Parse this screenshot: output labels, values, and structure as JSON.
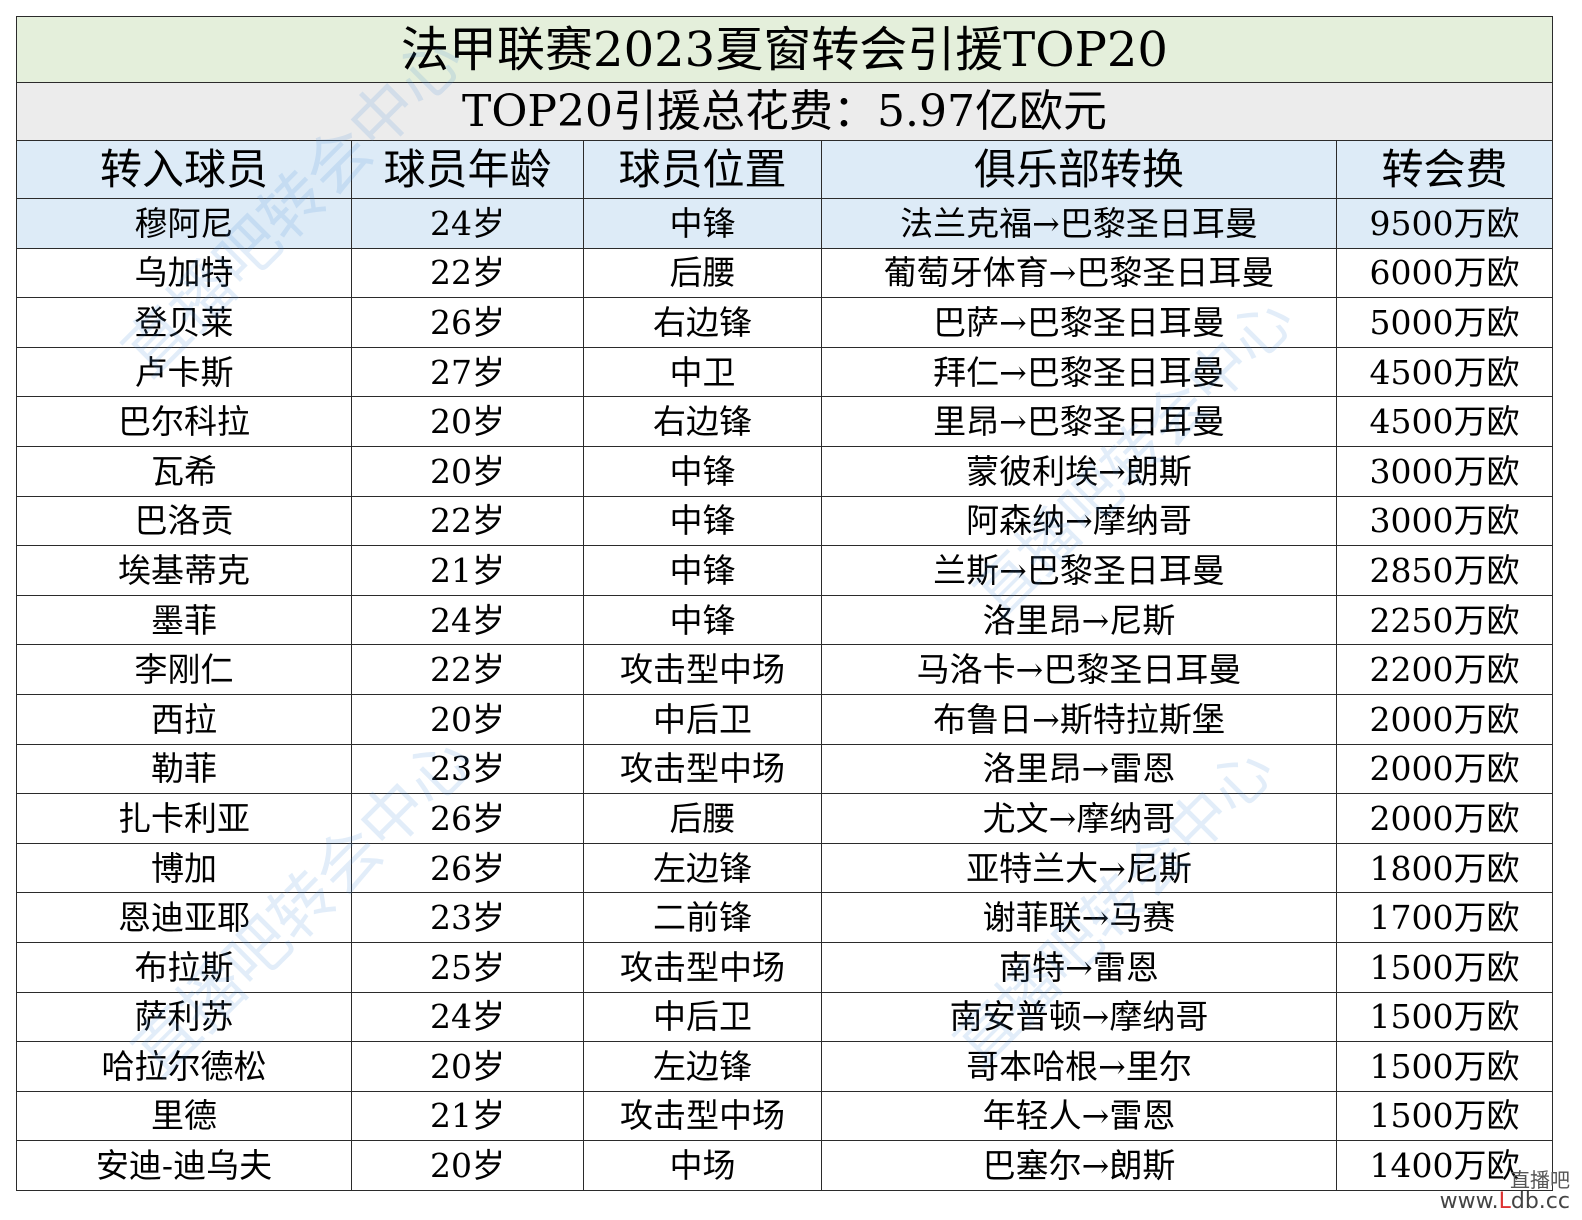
{
  "title": "法甲联赛2023夏窗转会引援TOP20",
  "subtitle": "TOP20引援总花费：5.97亿欧元",
  "columns": [
    "转入球员",
    "球员年龄",
    "球员位置",
    "俱乐部转换",
    "转会费"
  ],
  "rows": [
    {
      "player": "穆阿尼",
      "age": "24岁",
      "position": "中锋",
      "clubs": "法兰克福→巴黎圣日耳曼",
      "fee": "9500万欧"
    },
    {
      "player": "乌加特",
      "age": "22岁",
      "position": "后腰",
      "clubs": "葡萄牙体育→巴黎圣日耳曼",
      "fee": "6000万欧"
    },
    {
      "player": "登贝莱",
      "age": "26岁",
      "position": "右边锋",
      "clubs": "巴萨→巴黎圣日耳曼",
      "fee": "5000万欧"
    },
    {
      "player": "卢卡斯",
      "age": "27岁",
      "position": "中卫",
      "clubs": "拜仁→巴黎圣日耳曼",
      "fee": "4500万欧"
    },
    {
      "player": "巴尔科拉",
      "age": "20岁",
      "position": "右边锋",
      "clubs": "里昂→巴黎圣日耳曼",
      "fee": "4500万欧"
    },
    {
      "player": "瓦希",
      "age": "20岁",
      "position": "中锋",
      "clubs": "蒙彼利埃→朗斯",
      "fee": "3000万欧"
    },
    {
      "player": "巴洛贡",
      "age": "22岁",
      "position": "中锋",
      "clubs": "阿森纳→摩纳哥",
      "fee": "3000万欧"
    },
    {
      "player": "埃基蒂克",
      "age": "21岁",
      "position": "中锋",
      "clubs": "兰斯→巴黎圣日耳曼",
      "fee": "2850万欧"
    },
    {
      "player": "墨菲",
      "age": "24岁",
      "position": "中锋",
      "clubs": "洛里昂→尼斯",
      "fee": "2250万欧"
    },
    {
      "player": "李刚仁",
      "age": "22岁",
      "position": "攻击型中场",
      "clubs": "马洛卡→巴黎圣日耳曼",
      "fee": "2200万欧"
    },
    {
      "player": "西拉",
      "age": "20岁",
      "position": "中后卫",
      "clubs": "布鲁日→斯特拉斯堡",
      "fee": "2000万欧"
    },
    {
      "player": "勒菲",
      "age": "23岁",
      "position": "攻击型中场",
      "clubs": "洛里昂→雷恩",
      "fee": "2000万欧"
    },
    {
      "player": "扎卡利亚",
      "age": "26岁",
      "position": "后腰",
      "clubs": "尤文→摩纳哥",
      "fee": "2000万欧"
    },
    {
      "player": "博加",
      "age": "26岁",
      "position": "左边锋",
      "clubs": "亚特兰大→尼斯",
      "fee": "1800万欧"
    },
    {
      "player": "恩迪亚耶",
      "age": "23岁",
      "position": "二前锋",
      "clubs": "谢菲联→马赛",
      "fee": "1700万欧"
    },
    {
      "player": "布拉斯",
      "age": "25岁",
      "position": "攻击型中场",
      "clubs": "南特→雷恩",
      "fee": "1500万欧"
    },
    {
      "player": "萨利苏",
      "age": "24岁",
      "position": "中后卫",
      "clubs": "南安普顿→摩纳哥",
      "fee": "1500万欧"
    },
    {
      "player": "哈拉尔德松",
      "age": "20岁",
      "position": "左边锋",
      "clubs": "哥本哈根→里尔",
      "fee": "1500万欧"
    },
    {
      "player": "里德",
      "age": "21岁",
      "position": "攻击型中场",
      "clubs": "年轻人→雷恩",
      "fee": "1500万欧"
    },
    {
      "player": "安迪-迪乌夫",
      "age": "20岁",
      "position": "中场",
      "clubs": "巴塞尔→朗斯",
      "fee": "1400万欧"
    }
  ],
  "watermark": {
    "text": "直播吧转会中心",
    "color": "#4a90d9"
  },
  "corner_mark": {
    "line1": "直播吧",
    "line2_prefix": "www.",
    "line2_accent": "L",
    "line2_suffix": "db.cc"
  }
}
